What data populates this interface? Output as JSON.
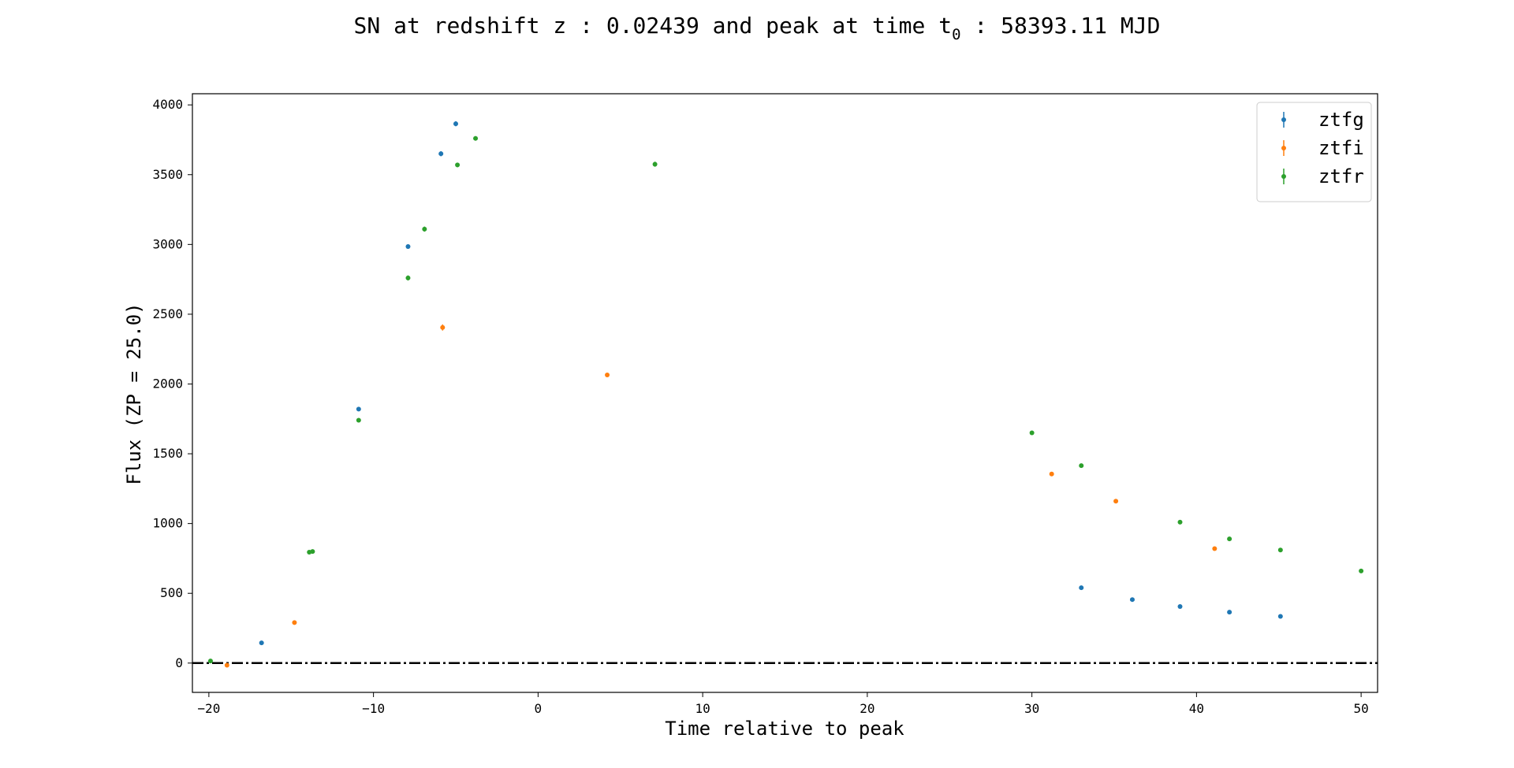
{
  "chart_data": {
    "type": "scatter",
    "title": "SN at redshift z : 0.02439 and peak at time t",
    "title_subscript": "0",
    "title_suffix": " : 58393.11 MJD",
    "xlabel": "Time relative to peak",
    "ylabel": "Flux (ZP = 25.0)",
    "xlim": [
      -21,
      51
    ],
    "ylim": [
      -210,
      4080
    ],
    "xticks": [
      -20,
      -10,
      0,
      10,
      20,
      30,
      40,
      50
    ],
    "xtick_labels": [
      "−20",
      "−10",
      "0",
      "10",
      "20",
      "30",
      "40",
      "50"
    ],
    "yticks": [
      0,
      500,
      1000,
      1500,
      2000,
      2500,
      3000,
      3500,
      4000
    ],
    "ytick_labels": [
      "0",
      "500",
      "1000",
      "1500",
      "2000",
      "2500",
      "3000",
      "3500",
      "4000"
    ],
    "grid": false,
    "legend_position": "top-right",
    "zero_line": {
      "y": 0,
      "style": "dash-dot",
      "color": "#000000"
    },
    "series": [
      {
        "name": "ztfg",
        "color": "#1f77b4",
        "x": [
          -16.8,
          -10.9,
          -7.9,
          -5.9,
          -5.0,
          33.0,
          36.1,
          39.0,
          42.0,
          45.1
        ],
        "y": [
          145,
          1820,
          2985,
          3650,
          3865,
          540,
          455,
          405,
          365,
          335
        ],
        "err": [
          6,
          12,
          16,
          18,
          18,
          8,
          8,
          8,
          8,
          8
        ]
      },
      {
        "name": "ztfi",
        "color": "#ff7f0e",
        "x": [
          -18.9,
          -14.8,
          -5.8,
          4.2,
          31.2,
          35.1,
          41.1
        ],
        "y": [
          -15,
          290,
          2405,
          2065,
          1355,
          1160,
          820
        ],
        "err": [
          8,
          8,
          22,
          10,
          8,
          8,
          8
        ]
      },
      {
        "name": "ztfr",
        "color": "#2ca02c",
        "x": [
          -19.9,
          -13.9,
          -13.7,
          -10.9,
          -7.9,
          -6.9,
          -4.9,
          -3.8,
          7.1,
          30.0,
          33.0,
          39.0,
          42.0,
          45.1,
          50.0
        ],
        "y": [
          15,
          795,
          800,
          1740,
          2760,
          3110,
          3570,
          3760,
          3575,
          1650,
          1415,
          1010,
          890,
          810,
          660
        ],
        "err": [
          6,
          8,
          8,
          12,
          18,
          18,
          16,
          16,
          18,
          8,
          8,
          8,
          8,
          8,
          8
        ]
      }
    ]
  }
}
